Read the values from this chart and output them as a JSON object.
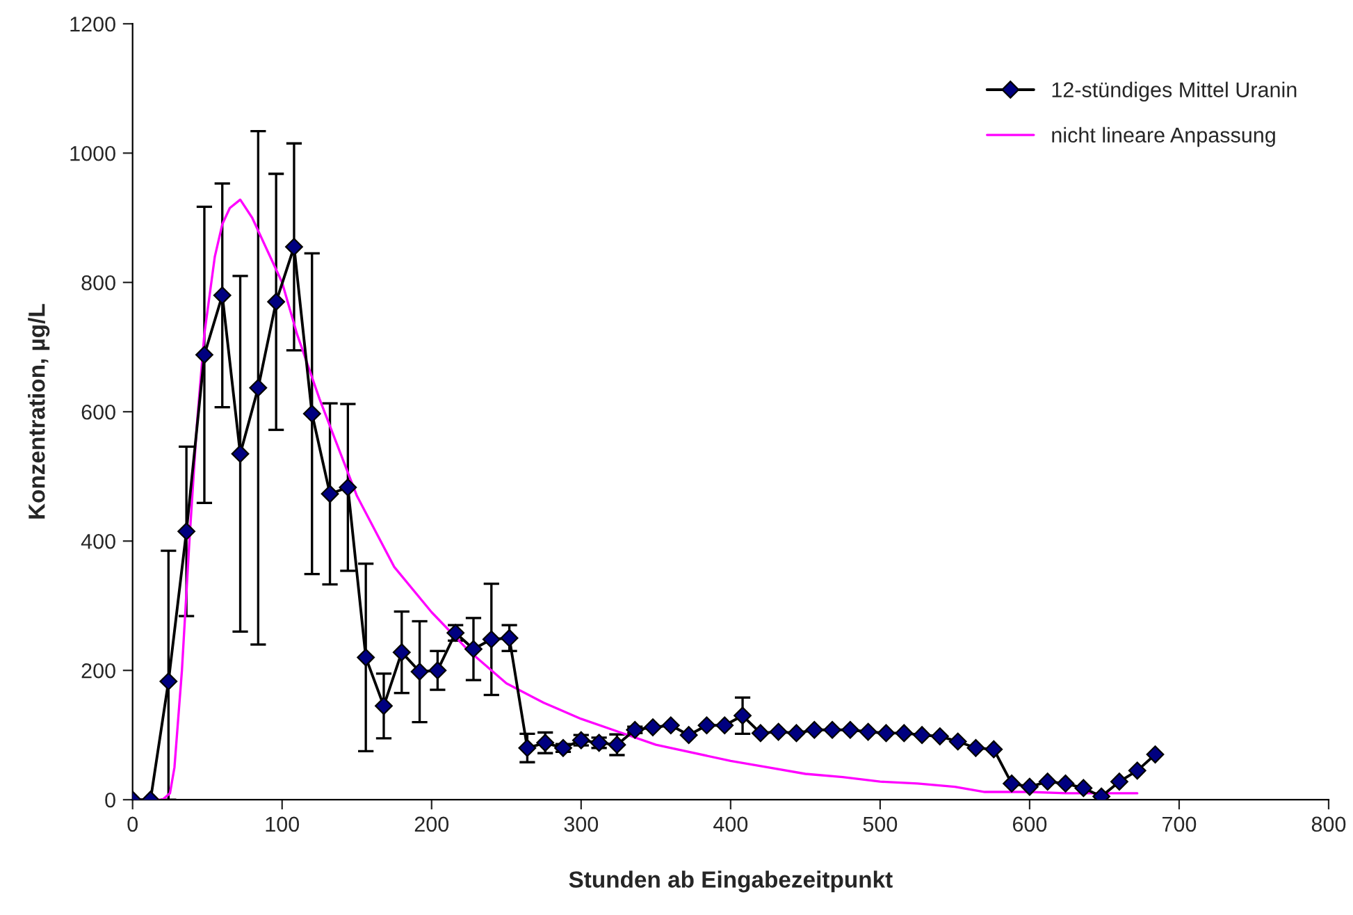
{
  "chart_data": {
    "type": "line",
    "xlabel": "Stunden ab Eingabezeitpunkt",
    "ylabel": "Konzentration, µg/L",
    "xlim": [
      0,
      800
    ],
    "xticks": [
      0,
      100,
      200,
      300,
      400,
      500,
      600,
      700,
      800
    ],
    "ylim": [
      0,
      1200
    ],
    "yticks": [
      0,
      200,
      400,
      600,
      800,
      1000,
      1200
    ],
    "grid": false,
    "legend": "top right",
    "series": [
      {
        "name": "12-stündiges Mittel Uranin",
        "color": "#000080",
        "marker": "diamond",
        "x": [
          0,
          12,
          24,
          36,
          48,
          60,
          72,
          84,
          96,
          108,
          120,
          132,
          144,
          156,
          168,
          180,
          192,
          204,
          216,
          228,
          240,
          252,
          264,
          276,
          288,
          300,
          312,
          324,
          336,
          348,
          360,
          372,
          384,
          396,
          408,
          420,
          432,
          444,
          456,
          468,
          480,
          492,
          504,
          516,
          528,
          540,
          552,
          564,
          576,
          588,
          600,
          612,
          624,
          636,
          648,
          660,
          672,
          684
        ],
        "values": [
          0,
          0,
          183,
          415,
          688,
          780,
          535,
          637,
          770,
          855,
          597,
          473,
          483,
          220,
          145,
          228,
          198,
          200,
          258,
          233,
          248,
          250,
          80,
          88,
          80,
          92,
          88,
          85,
          108,
          112,
          115,
          100,
          115,
          115,
          130,
          103,
          105,
          103,
          108,
          108,
          108,
          105,
          103,
          103,
          100,
          98,
          90,
          80,
          78,
          25,
          20,
          28,
          25,
          18,
          5,
          28,
          45,
          70
        ],
        "errors": [
          null,
          null,
          [
            0,
            385
          ],
          131,
          229,
          173,
          275,
          397,
          198,
          160,
          248,
          140,
          129,
          145,
          50,
          63,
          78,
          30,
          12,
          48,
          86,
          20,
          22,
          16,
          6,
          8,
          8,
          16,
          5,
          null,
          null,
          null,
          null,
          null,
          28,
          null,
          null,
          null,
          null,
          null,
          null,
          null,
          null,
          null,
          null,
          null,
          null,
          null,
          null,
          null,
          null,
          null,
          null,
          null,
          null,
          null,
          null,
          null
        ]
      },
      {
        "name": "nicht lineare Anpassung",
        "color": "#ff00ff",
        "marker": "none",
        "x": [
          0,
          20,
          25,
          28,
          33,
          38,
          43,
          48,
          55,
          60,
          65,
          72,
          80,
          90,
          100,
          110,
          125,
          140,
          150,
          175,
          200,
          225,
          250,
          275,
          300,
          325,
          350,
          400,
          425,
          450,
          475,
          500,
          525,
          550,
          570,
          600,
          625,
          650,
          672
        ],
        "values": [
          0,
          0,
          10,
          50,
          200,
          400,
          580,
          720,
          840,
          890,
          915,
          928,
          900,
          850,
          800,
          720,
          620,
          530,
          470,
          360,
          290,
          230,
          180,
          150,
          125,
          105,
          85,
          60,
          50,
          40,
          35,
          28,
          25,
          20,
          12,
          12,
          10,
          10,
          10
        ]
      }
    ]
  }
}
